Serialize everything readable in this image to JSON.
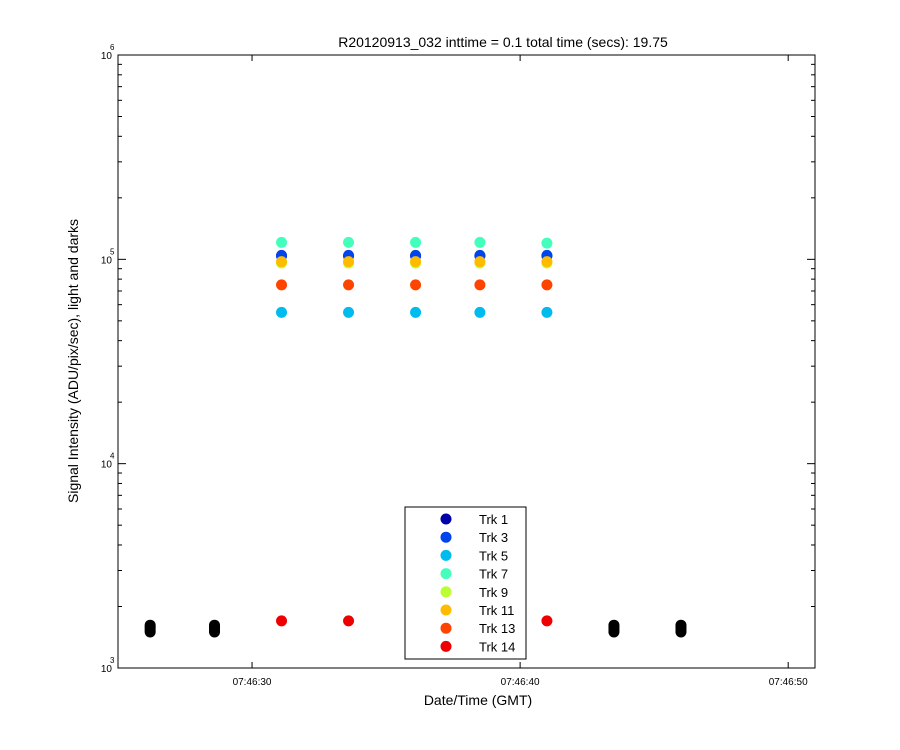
{
  "chart_data": {
    "type": "scatter",
    "title": "R20120913_032 inttime = 0.1 total time (secs): 19.75",
    "xlabel": "Date/Time (GMT)",
    "ylabel": "Signal Intensity (ADU/pix/sec), light and darks",
    "x_unit": "seconds",
    "xlim": [
      "07:46:25",
      "07:46:51"
    ],
    "x_ticks": [
      "07:46:30",
      "07:46:40",
      "07:46:50"
    ],
    "y_scale": "log",
    "ylim": [
      1000,
      1000000
    ],
    "y_ticks": [
      {
        "base": "10",
        "exp": "3",
        "value": 1000
      },
      {
        "base": "10",
        "exp": "4",
        "value": 10000
      },
      {
        "base": "10",
        "exp": "5",
        "value": 100000
      },
      {
        "base": "10",
        "exp": "6",
        "value": 1000000
      }
    ],
    "legend_position": "bottom-center",
    "grid": false,
    "series": [
      {
        "name": "Trk 1",
        "color": "#0000aa",
        "x": [
          "07:46:31.1",
          "07:46:33.6",
          "07:46:36.1",
          "07:46:38.5",
          "07:46:41.0"
        ],
        "y": [
          104000,
          104000,
          104000,
          104000,
          104000
        ]
      },
      {
        "name": "Trk 3",
        "color": "#0044ee",
        "x": [
          "07:46:31.1",
          "07:46:33.6",
          "07:46:36.1",
          "07:46:38.5",
          "07:46:41.0"
        ],
        "y": [
          104500,
          104500,
          104500,
          104500,
          104500
        ]
      },
      {
        "name": "Trk 5",
        "color": "#00bbee",
        "x": [
          "07:46:31.1",
          "07:46:33.6",
          "07:46:36.1",
          "07:46:38.5",
          "07:46:41.0"
        ],
        "y": [
          55000,
          55000,
          55000,
          55000,
          55000
        ]
      },
      {
        "name": "Trk 7",
        "color": "#44ffbb",
        "x": [
          "07:46:31.1",
          "07:46:33.6",
          "07:46:36.1",
          "07:46:38.5",
          "07:46:41.0"
        ],
        "y": [
          121000,
          121000,
          121000,
          121000,
          120000
        ]
      },
      {
        "name": "Trk 9",
        "color": "#bbff33",
        "x": [
          "07:46:31.1",
          "07:46:33.6",
          "07:46:36.1",
          "07:46:38.5",
          "07:46:41.0"
        ],
        "y": [
          96000,
          96000,
          96000,
          96000,
          96000
        ]
      },
      {
        "name": "Trk 11",
        "color": "#ffbb00",
        "x": [
          "07:46:31.1",
          "07:46:33.6",
          "07:46:36.1",
          "07:46:38.5",
          "07:46:41.0"
        ],
        "y": [
          97500,
          97500,
          97500,
          97500,
          97500
        ]
      },
      {
        "name": "Trk 13",
        "color": "#ff4400",
        "x": [
          "07:46:31.1",
          "07:46:33.6",
          "07:46:36.1",
          "07:46:38.5",
          "07:46:41.0"
        ],
        "y": [
          75000,
          75000,
          75000,
          75000,
          75000
        ]
      },
      {
        "name": "Trk 14",
        "color": "#ee0000",
        "x": [
          "07:46:31.1",
          "07:46:33.6",
          "07:46:36.1",
          "07:46:38.5",
          "07:46:41.0"
        ],
        "y": [
          1700,
          1700,
          1700,
          1700,
          1700
        ]
      }
    ],
    "dark_series": {
      "color": "#000000",
      "x": [
        "07:46:26.2",
        "07:46:28.6",
        "07:46:43.5",
        "07:46:46.0"
      ],
      "y": [
        [
          1500,
          1530,
          1560,
          1590,
          1620
        ],
        [
          1500,
          1530,
          1560,
          1590,
          1620
        ],
        [
          1500,
          1530,
          1560,
          1590,
          1620
        ],
        [
          1500,
          1530,
          1560,
          1590,
          1620
        ]
      ]
    }
  }
}
